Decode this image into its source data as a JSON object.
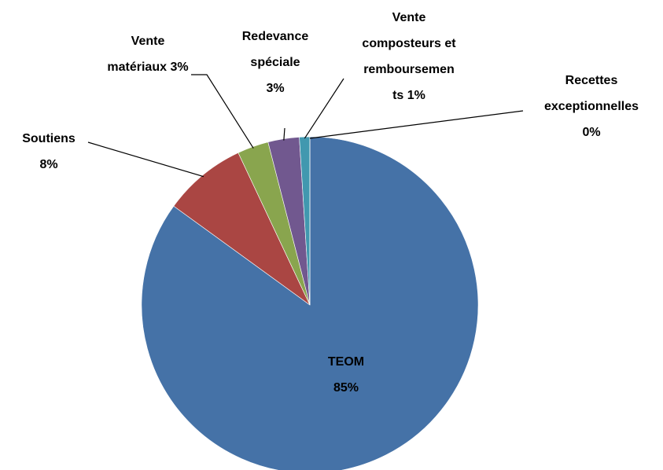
{
  "chart_data": {
    "type": "pie",
    "categories": [
      "TEOM",
      "Soutiens",
      "Vente matériaux",
      "Redevance spéciale",
      "Vente composteurs et remboursements",
      "Recettes exceptionnelles"
    ],
    "values": [
      85,
      8,
      3,
      3,
      1,
      0
    ],
    "value_labels": [
      "85%",
      "8%",
      "3%",
      "3%",
      "1%",
      "0%"
    ],
    "colors": [
      "#4572a7",
      "#aa4643",
      "#89a54e",
      "#71588f",
      "#4198af",
      "#db843d"
    ]
  }
}
